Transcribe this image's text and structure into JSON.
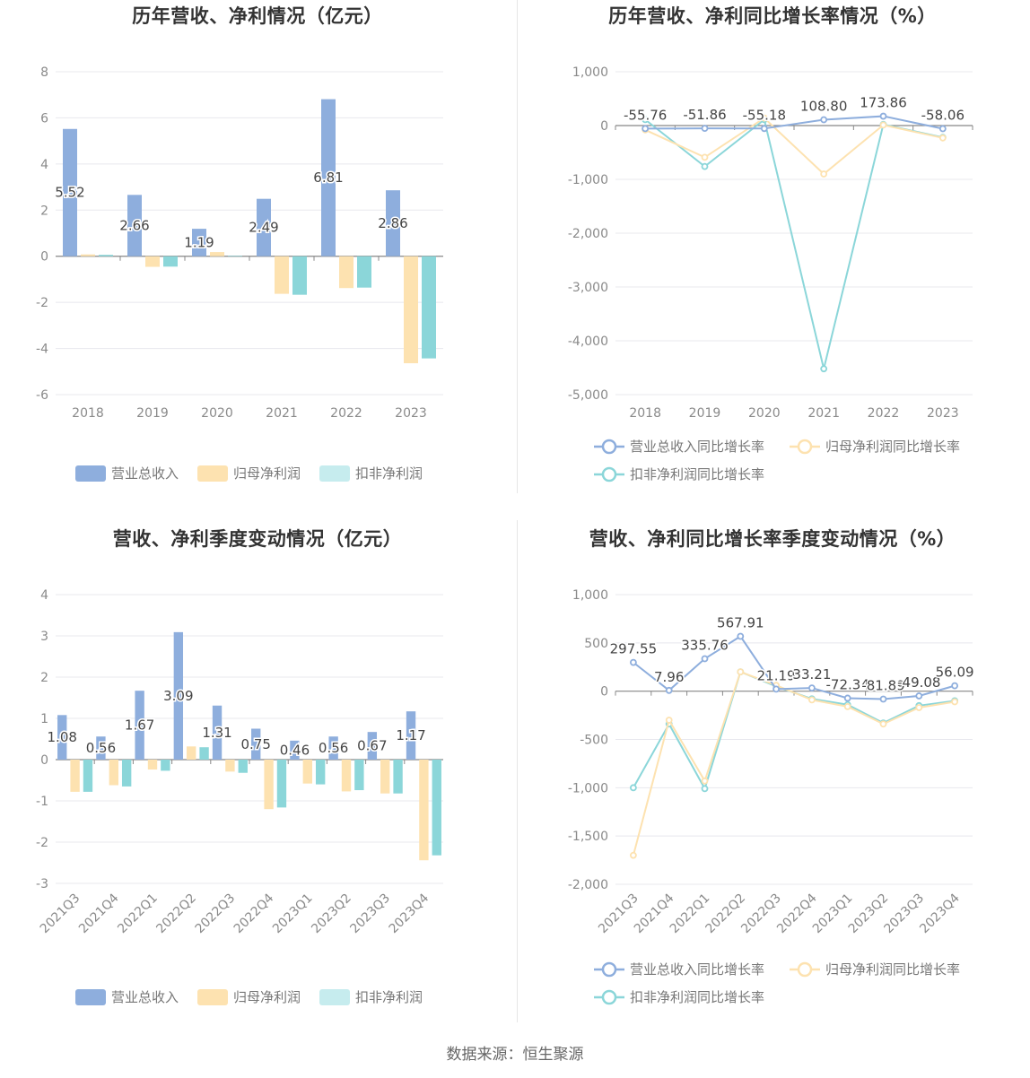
{
  "source": "数据来源：恒生聚源",
  "colors": {
    "revenue": "#8eaedd",
    "net_profit": "#fde2b0",
    "deducted_profit": "#8bd6d9",
    "grid": "#e8e8ee",
    "axis": "#9a9a9a"
  },
  "chart_data": [
    {
      "id": "annual_amount",
      "type": "bar",
      "title": "历年营收、净利情况（亿元）",
      "categories": [
        "2018",
        "2019",
        "2020",
        "2021",
        "2022",
        "2023"
      ],
      "series": [
        {
          "name": "营业总收入",
          "values": [
            5.52,
            2.66,
            1.19,
            2.49,
            6.81,
            2.86
          ]
        },
        {
          "name": "归母净利润",
          "values": [
            0.08,
            -0.46,
            0.18,
            -1.63,
            -1.38,
            -4.64
          ]
        },
        {
          "name": "扣非净利润",
          "values": [
            0.06,
            -0.45,
            0.02,
            -1.67,
            -1.36,
            -4.43
          ]
        }
      ],
      "data_labels_series": 0,
      "ylim": [
        -6,
        8
      ],
      "yticks": [
        8,
        6,
        4,
        2,
        0,
        -2,
        -4,
        -6
      ],
      "ytick_labels": [
        "8",
        "6",
        "4",
        "2",
        "0",
        "-2",
        "-4",
        "-6"
      ],
      "grid": true,
      "legend": "bottom"
    },
    {
      "id": "annual_growth",
      "type": "line",
      "title": "历年营收、净利同比增长率情况（%）",
      "categories": [
        "2018",
        "2019",
        "2020",
        "2021",
        "2022",
        "2023"
      ],
      "series": [
        {
          "name": "营业总收入同比增长率",
          "values": [
            -55.76,
            -51.86,
            -55.18,
            108.8,
            173.86,
            -58.06
          ]
        },
        {
          "name": "归母净利润同比增长率",
          "values": [
            -80,
            -590,
            140,
            -900,
            10,
            -230
          ]
        },
        {
          "name": "扣非净利润同比增长率",
          "values": [
            110,
            -760,
            110,
            -4520,
            20,
            -220
          ]
        }
      ],
      "data_labels_series": 0,
      "data_labels": [
        "-55.76",
        "-51.86",
        "-55.18",
        "108.80",
        "173.86",
        "-58.06"
      ],
      "ylim": [
        -5000,
        1000
      ],
      "yticks": [
        1000,
        0,
        -1000,
        -2000,
        -3000,
        -4000,
        -5000
      ],
      "ytick_labels": [
        "1,000",
        "0",
        "-1,000",
        "-2,000",
        "-3,000",
        "-4,000",
        "-5,000"
      ],
      "grid": true,
      "legend": "bottom"
    },
    {
      "id": "quarterly_amount",
      "type": "bar",
      "title": "营收、净利季度变动情况（亿元）",
      "categories": [
        "2021Q3",
        "2021Q4",
        "2022Q1",
        "2022Q2",
        "2022Q3",
        "2022Q4",
        "2023Q1",
        "2023Q2",
        "2023Q3",
        "2023Q4"
      ],
      "series": [
        {
          "name": "营业总收入",
          "values": [
            1.08,
            0.56,
            1.67,
            3.09,
            1.31,
            0.75,
            0.46,
            0.56,
            0.67,
            1.17
          ]
        },
        {
          "name": "归母净利润",
          "values": [
            -0.78,
            -0.62,
            -0.24,
            0.32,
            -0.29,
            -1.2,
            -0.58,
            -0.77,
            -0.82,
            -2.44
          ]
        },
        {
          "name": "扣非净利润",
          "values": [
            -0.78,
            -0.65,
            -0.27,
            0.3,
            -0.32,
            -1.16,
            -0.6,
            -0.74,
            -0.82,
            -2.32
          ]
        }
      ],
      "data_labels_series": 0,
      "ylim": [
        -3,
        4
      ],
      "yticks": [
        4,
        3,
        2,
        1,
        0,
        -1,
        -2,
        -3
      ],
      "ytick_labels": [
        "4",
        "3",
        "2",
        "1",
        "0",
        "-1",
        "-2",
        "-3"
      ],
      "grid": true,
      "legend": "bottom"
    },
    {
      "id": "quarterly_growth",
      "type": "line",
      "title": "营收、净利同比增长率季度变动情况（%）",
      "categories": [
        "2021Q3",
        "2021Q4",
        "2022Q1",
        "2022Q2",
        "2022Q3",
        "2022Q4",
        "2023Q1",
        "2023Q2",
        "2023Q3",
        "2023Q4"
      ],
      "series": [
        {
          "name": "营业总收入同比增长率",
          "values": [
            297.55,
            7.96,
            335.76,
            567.91,
            21.19,
            33.21,
            -72.34,
            -81.89,
            -49.08,
            56.09
          ]
        },
        {
          "name": "归母净利润同比增长率",
          "values": [
            -1700,
            -300,
            -930,
            200,
            60,
            -90,
            -160,
            -340,
            -170,
            -110
          ]
        },
        {
          "name": "扣非净利润同比增长率",
          "values": [
            -1000,
            -340,
            -1010,
            200,
            50,
            -80,
            -140,
            -330,
            -150,
            -100
          ]
        }
      ],
      "data_labels_series": 0,
      "data_labels": [
        "297.55",
        "7.96",
        "335.76",
        "567.91",
        "21.19",
        "33.21",
        "-72.34",
        "-81.89",
        "-49.08",
        "56.09"
      ],
      "ylim": [
        -2000,
        1000
      ],
      "yticks": [
        1000,
        500,
        0,
        -500,
        -1000,
        -1500,
        -2000
      ],
      "ytick_labels": [
        "1,000",
        "500",
        "0",
        "-500",
        "-1,000",
        "-1,500",
        "-2,000"
      ],
      "grid": true,
      "legend": "bottom"
    }
  ]
}
